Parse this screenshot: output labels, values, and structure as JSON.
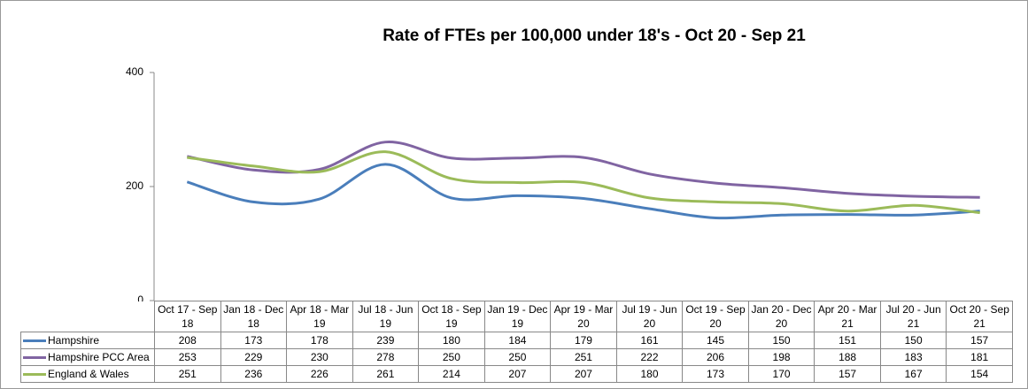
{
  "chart_data": {
    "type": "line",
    "title": "Rate of FTEs per 100,000 under 18's - Oct 20 - Sep 21",
    "categories": [
      "Oct 17 - Sep 18",
      "Jan 18 - Dec 18",
      "Apr 18 - Mar 19",
      "Jul 18 - Jun 19",
      "Oct 18 - Sep 19",
      "Jan 19 - Dec 19",
      "Apr 19 - Mar 20",
      "Jul 19 - Jun 20",
      "Oct 19 - Sep 20",
      "Jan 20 - Dec 20",
      "Apr 20 - Mar 21",
      "Jul 20 - Jun 21",
      "Oct 20 - Sep 21"
    ],
    "series": [
      {
        "name": "Hampshire",
        "color": "#4a7ebb",
        "values": [
          208,
          173,
          178,
          239,
          180,
          184,
          179,
          161,
          145,
          150,
          151,
          150,
          157
        ]
      },
      {
        "name": "Hampshire PCC Area",
        "color": "#8064a2",
        "values": [
          253,
          229,
          230,
          278,
          250,
          250,
          251,
          222,
          206,
          198,
          188,
          183,
          181
        ]
      },
      {
        "name": "England & Wales",
        "color": "#9bbb59",
        "values": [
          251,
          236,
          226,
          261,
          214,
          207,
          207,
          180,
          173,
          170,
          157,
          167,
          154
        ]
      }
    ],
    "ylim": [
      0,
      400
    ],
    "yticks": [
      0,
      200,
      400
    ]
  }
}
